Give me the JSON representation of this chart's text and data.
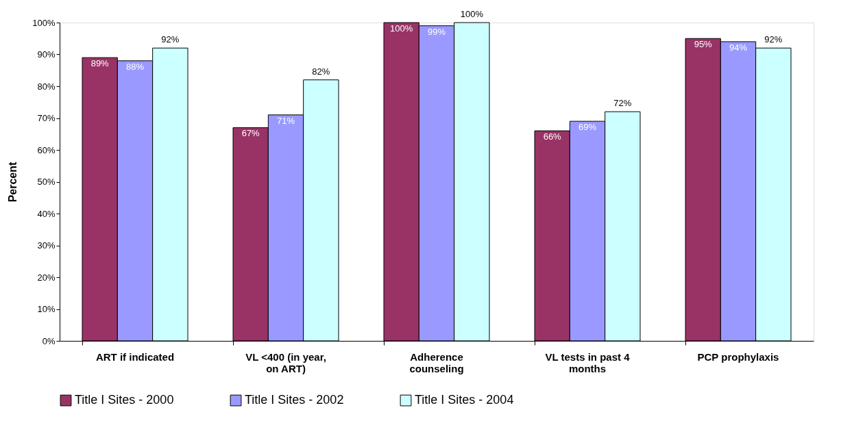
{
  "chart_data": {
    "type": "bar",
    "ylabel": "Percent",
    "categories": [
      "ART if indicated",
      "VL <400 (in year, on ART)",
      "Adherence counseling",
      "VL tests in past 4 months",
      "PCP prophylaxis"
    ],
    "series": [
      {
        "name": "Title I Sites - 2000",
        "color": "#993366",
        "values": [
          89,
          67,
          100,
          66,
          95
        ],
        "value_labels": [
          "89%",
          "67%",
          "100%",
          "66%",
          "95%"
        ]
      },
      {
        "name": "Title I Sites - 2002",
        "color": "#9999ff",
        "values": [
          88,
          71,
          99,
          69,
          94
        ],
        "value_labels": [
          "88%",
          "71%",
          "99%",
          "69%",
          "94%"
        ]
      },
      {
        "name": "Title I Sites - 2004",
        "color": "#ccffff",
        "values": [
          92,
          82,
          100,
          72,
          92
        ],
        "value_labels": [
          "92%",
          "82%",
          "100%",
          "72%",
          "92%"
        ]
      }
    ],
    "ylim": [
      0,
      100
    ],
    "yticks": [
      {
        "value": 0,
        "label": "0%"
      },
      {
        "value": 10,
        "label": "10%"
      },
      {
        "value": 20,
        "label": "20%"
      },
      {
        "value": 30,
        "label": "30%"
      },
      {
        "value": 40,
        "label": "40%"
      },
      {
        "value": 50,
        "label": "50%"
      },
      {
        "value": 60,
        "label": "60%"
      },
      {
        "value": 70,
        "label": "70%"
      },
      {
        "value": 80,
        "label": "80%"
      },
      {
        "value": 90,
        "label": "90%"
      },
      {
        "value": 100,
        "label": "100%"
      }
    ],
    "grid": false,
    "legend": "bottom"
  }
}
